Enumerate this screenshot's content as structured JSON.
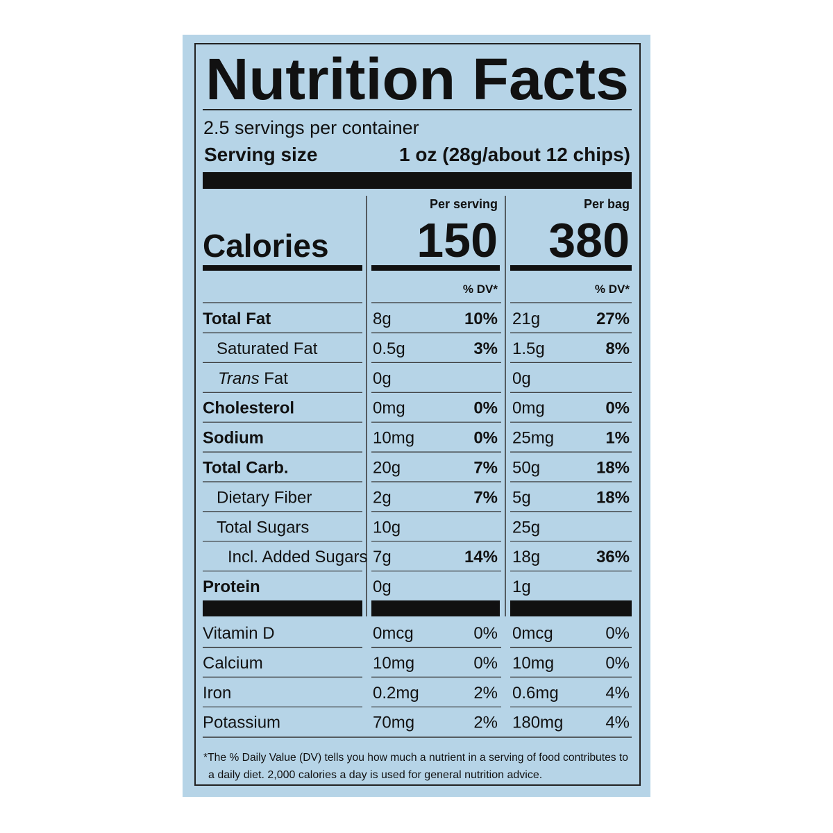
{
  "header": {
    "title": "Nutrition Facts",
    "servings": "2.5 servings per container",
    "serving_size_label": "Serving size",
    "serving_size_value": "1 oz (28g/about 12 chips)"
  },
  "calories": {
    "label": "Calories",
    "columns": [
      {
        "heading": "Per serving",
        "value": "150"
      },
      {
        "heading": "Per bag",
        "value": "380"
      }
    ]
  },
  "dv_headings": [
    "% DV*",
    "% DV*"
  ],
  "nutrients": [
    {
      "name": [
        "Total Fat"
      ],
      "per_serving": {
        "amount": "8g",
        "dv": "10%"
      },
      "per_bag": {
        "amount": "21g",
        "dv": "27%"
      }
    },
    {
      "name": [
        "Saturated Fat"
      ],
      "per_serving": {
        "amount": "0.5g",
        "dv": "3%"
      },
      "per_bag": {
        "amount": "1.5g",
        "dv": "8%"
      }
    },
    {
      "name": [
        "Trans",
        "Fat"
      ],
      "per_serving": {
        "amount": "0g"
      },
      "per_bag": {
        "amount": "0g"
      }
    },
    {
      "name": [
        "Cholesterol"
      ],
      "per_serving": {
        "amount": "0mg",
        "dv": "0%"
      },
      "per_bag": {
        "amount": "0mg",
        "dv": "0%"
      }
    },
    {
      "name": [
        "Sodium"
      ],
      "per_serving": {
        "amount": "10mg",
        "dv": "0%"
      },
      "per_bag": {
        "amount": "25mg",
        "dv": "1%"
      }
    },
    {
      "name": [
        "Total Carb."
      ],
      "per_serving": {
        "amount": "20g",
        "dv": "7%"
      },
      "per_bag": {
        "amount": "50g",
        "dv": "18%"
      }
    },
    {
      "name": [
        "Dietary Fiber"
      ],
      "per_serving": {
        "amount": "2g",
        "dv": "7%"
      },
      "per_bag": {
        "amount": "5g",
        "dv": "18%"
      }
    },
    {
      "name": [
        "Total Sugars"
      ],
      "per_serving": {
        "amount": "10g"
      },
      "per_bag": {
        "amount": "25g"
      }
    },
    {
      "name": [
        "Incl. Added Sugars"
      ],
      "per_serving": {
        "amount": "7g",
        "dv": "14%"
      },
      "per_bag": {
        "amount": "18g",
        "dv": "36%"
      }
    },
    {
      "name": [
        "Protein"
      ],
      "per_serving": {
        "amount": "0g"
      },
      "per_bag": {
        "amount": "1g"
      }
    }
  ],
  "vitamins": [
    {
      "name": "Vitamin D",
      "per_serving": {
        "amount": "0mcg",
        "dv": "0%"
      },
      "per_bag": {
        "amount": "0mcg",
        "dv": "0%"
      }
    },
    {
      "name": "Calcium",
      "per_serving": {
        "amount": "10mg",
        "dv": "0%"
      },
      "per_bag": {
        "amount": "10mg",
        "dv": "0%"
      }
    },
    {
      "name": "Iron",
      "per_serving": {
        "amount": "0.2mg",
        "dv": "2%"
      },
      "per_bag": {
        "amount": "0.6mg",
        "dv": "4%"
      }
    },
    {
      "name": "Potassium",
      "per_serving": {
        "amount": "70mg",
        "dv": "2%"
      },
      "per_bag": {
        "amount": "180mg",
        "dv": "4%"
      }
    }
  ],
  "footnote": [
    "*The % Daily Value (DV) tells you how much a nutrient in a serving of food contributes to",
    "a daily diet. 2,000 calories a day is used for general nutrition advice."
  ]
}
